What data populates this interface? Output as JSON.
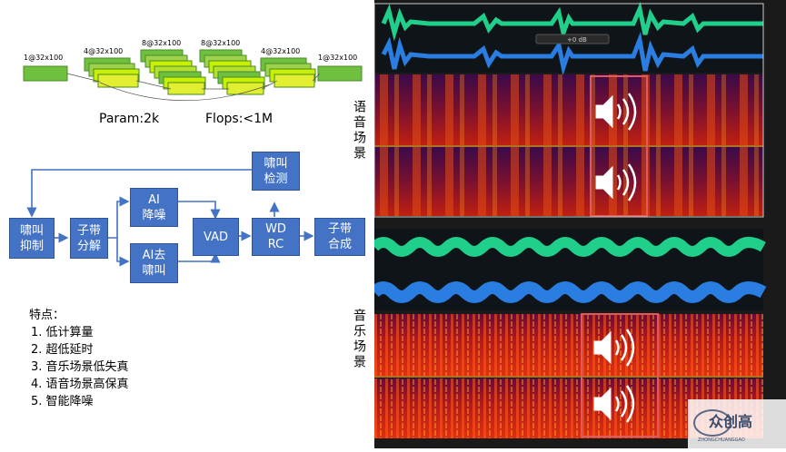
{
  "network": {
    "layer_labels": [
      "1@32x100",
      "4@32x100",
      "8@32x100",
      "8@32x100",
      "4@32x100",
      "1@32x100"
    ],
    "param_text": "Param:2k",
    "flops_text": "Flops:<1M"
  },
  "pipeline": {
    "howl_suppress": "啸叫\n抑制",
    "subband_decompose": "子带\n分解",
    "ai_denoise": "AI\n降噪",
    "ai_dehowl": "AI去\n啸叫",
    "vad": "VAD",
    "wdrc": "WD\nRC",
    "subband_synth": "子带\n合成",
    "howl_detect": "啸叫\n检测"
  },
  "features": {
    "title": "特点：",
    "items": [
      "1.   低计算量",
      "2.   超低延时",
      "3.   音乐场景低失真",
      "4.   语音场景高保真",
      "5.   智能降噪"
    ]
  },
  "scenes": {
    "speech_label": "语音场景",
    "music_label": "音乐场景"
  },
  "editor": {
    "level_readout": "+0 dB"
  },
  "watermark": {
    "brand": "众创高",
    "sub": "ZHONGCHUANGGAO"
  },
  "colors": {
    "block_blue": "#4472c4",
    "layer_green": "#70c040",
    "layer_lime": "#c8f000",
    "wave_green": "#1fcf8a",
    "wave_blue": "#2a7de1",
    "highlight_red": "#d9534f"
  }
}
